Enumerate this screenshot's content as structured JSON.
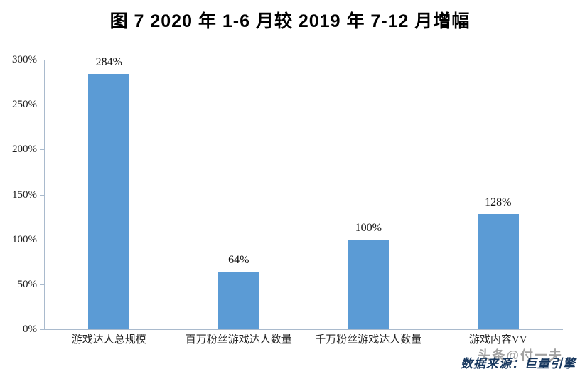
{
  "title": "图 7  2020 年 1-6 月较 2019 年 7-12 月增幅",
  "chart_data": {
    "type": "bar",
    "title": "图 7  2020 年 1-6 月较 2019 年 7-12 月增幅",
    "categories": [
      "游戏达人总规模",
      "百万粉丝游戏达人数量",
      "千万粉丝游戏达人数量",
      "游戏内容VV"
    ],
    "values": [
      284,
      64,
      100,
      128
    ],
    "data_labels": [
      "284%",
      "64%",
      "100%",
      "128%"
    ],
    "ylim": [
      0,
      300
    ],
    "ytick_step": 50,
    "ytick_labels": [
      "0%",
      "50%",
      "100%",
      "150%",
      "200%",
      "250%",
      "300%"
    ],
    "xlabel": "",
    "ylabel": "",
    "grid": false,
    "legend": "none",
    "bar_color": "#5b9bd5",
    "axis_color": "#a9bacd"
  },
  "source": "数据来源：巨量引擎",
  "watermark": "头条@付一夫",
  "colors": {
    "bar": "#5b9bd5",
    "axis": "#a9bacd",
    "source_text": "#17375e",
    "watermark_text": "#8c8c8c",
    "label_text": "#000000"
  }
}
